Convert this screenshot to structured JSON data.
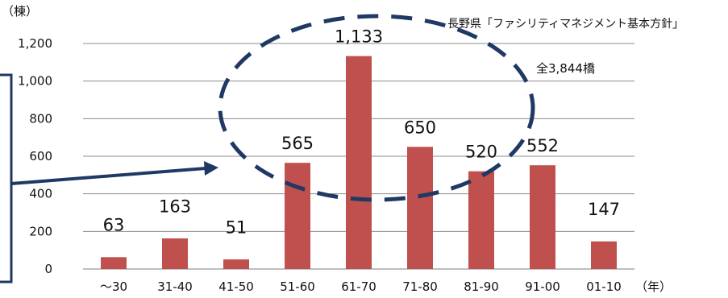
{
  "chart_data": {
    "type": "bar",
    "categories": [
      "～30",
      "31-40",
      "41-50",
      "51-60",
      "61-70",
      "71-80",
      "81-90",
      "91-00",
      "01-10"
    ],
    "values": [
      63,
      163,
      51,
      565,
      1133,
      650,
      520,
      552,
      147
    ],
    "data_labels": [
      "63",
      "163",
      "51",
      "565",
      "1,133",
      "650",
      "520",
      "552",
      "147"
    ],
    "y_ticks": [
      "0",
      "200",
      "400",
      "600",
      "800",
      "1,000",
      "1,200"
    ],
    "y_tick_values": [
      0,
      200,
      400,
      600,
      800,
      1000,
      1200
    ],
    "ylim": [
      0,
      1200
    ],
    "ylabel": "（棟）",
    "xlabel": "（年）",
    "source": "長野県「ファシリティマネジメント基本方針」",
    "annotation": "全3,844橋",
    "grid": true,
    "legend": "none",
    "colors": {
      "bar": "#c0504d",
      "grid": "#8c8c8c",
      "axis": "#7f7f7f",
      "annotation": "#1f3864"
    }
  }
}
